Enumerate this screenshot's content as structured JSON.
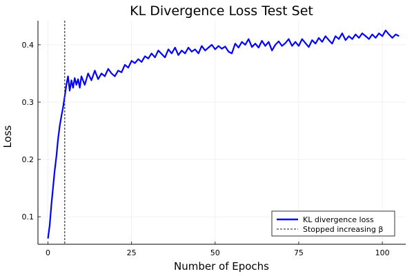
{
  "chart_data": {
    "type": "line",
    "title": "KL Divergence Loss Test Set",
    "xlabel": "Number of Epochs",
    "ylabel": "Loss",
    "xlim": [
      -3,
      107
    ],
    "ylim": [
      0.052,
      0.442
    ],
    "xticks": [
      0,
      25,
      50,
      75,
      100
    ],
    "yticks": [
      0.1,
      0.2,
      0.3,
      0.4
    ],
    "grid": true,
    "legend_position": "bottom-right",
    "series": [
      {
        "name": "KL divergence loss",
        "color": "#0000ff",
        "style": "solid",
        "x": [
          0,
          0.5,
          1,
          1.5,
          2,
          2.5,
          3,
          3.5,
          4,
          4.5,
          5,
          5.5,
          6,
          6.5,
          7,
          7.5,
          8,
          8.5,
          9,
          9.5,
          10,
          11,
          12,
          13,
          14,
          15,
          16,
          17,
          18,
          19,
          20,
          21,
          22,
          23,
          24,
          25,
          26,
          27,
          28,
          29,
          30,
          31,
          32,
          33,
          34,
          35,
          36,
          37,
          38,
          39,
          40,
          41,
          42,
          43,
          44,
          45,
          46,
          47,
          48,
          49,
          50,
          51,
          52,
          53,
          54,
          55,
          56,
          57,
          58,
          59,
          60,
          61,
          62,
          63,
          64,
          65,
          66,
          67,
          68,
          69,
          70,
          71,
          72,
          73,
          74,
          75,
          76,
          77,
          78,
          79,
          80,
          81,
          82,
          83,
          84,
          85,
          86,
          87,
          88,
          89,
          90,
          91,
          92,
          93,
          94,
          95,
          96,
          97,
          98,
          99,
          100,
          101,
          102,
          103,
          104,
          105
        ],
        "y": [
          0.062,
          0.085,
          0.12,
          0.15,
          0.18,
          0.205,
          0.235,
          0.258,
          0.275,
          0.29,
          0.31,
          0.33,
          0.345,
          0.32,
          0.338,
          0.325,
          0.342,
          0.33,
          0.34,
          0.325,
          0.345,
          0.33,
          0.35,
          0.338,
          0.355,
          0.34,
          0.35,
          0.345,
          0.358,
          0.35,
          0.345,
          0.355,
          0.352,
          0.365,
          0.36,
          0.372,
          0.368,
          0.375,
          0.37,
          0.38,
          0.376,
          0.385,
          0.378,
          0.39,
          0.384,
          0.378,
          0.392,
          0.385,
          0.395,
          0.382,
          0.39,
          0.385,
          0.395,
          0.388,
          0.392,
          0.385,
          0.398,
          0.39,
          0.395,
          0.4,
          0.392,
          0.398,
          0.393,
          0.397,
          0.388,
          0.385,
          0.402,
          0.395,
          0.405,
          0.4,
          0.41,
          0.396,
          0.402,
          0.395,
          0.407,
          0.398,
          0.405,
          0.39,
          0.4,
          0.406,
          0.398,
          0.403,
          0.41,
          0.398,
          0.405,
          0.398,
          0.41,
          0.403,
          0.396,
          0.408,
          0.402,
          0.412,
          0.405,
          0.415,
          0.408,
          0.402,
          0.415,
          0.41,
          0.42,
          0.408,
          0.415,
          0.41,
          0.418,
          0.412,
          0.42,
          0.415,
          0.41,
          0.418,
          0.412,
          0.42,
          0.415,
          0.425,
          0.418,
          0.412,
          0.418,
          0.415
        ]
      },
      {
        "name": "Stopped increasing β",
        "color": "#444444",
        "style": "dashed",
        "x_vertical": 5
      }
    ]
  }
}
